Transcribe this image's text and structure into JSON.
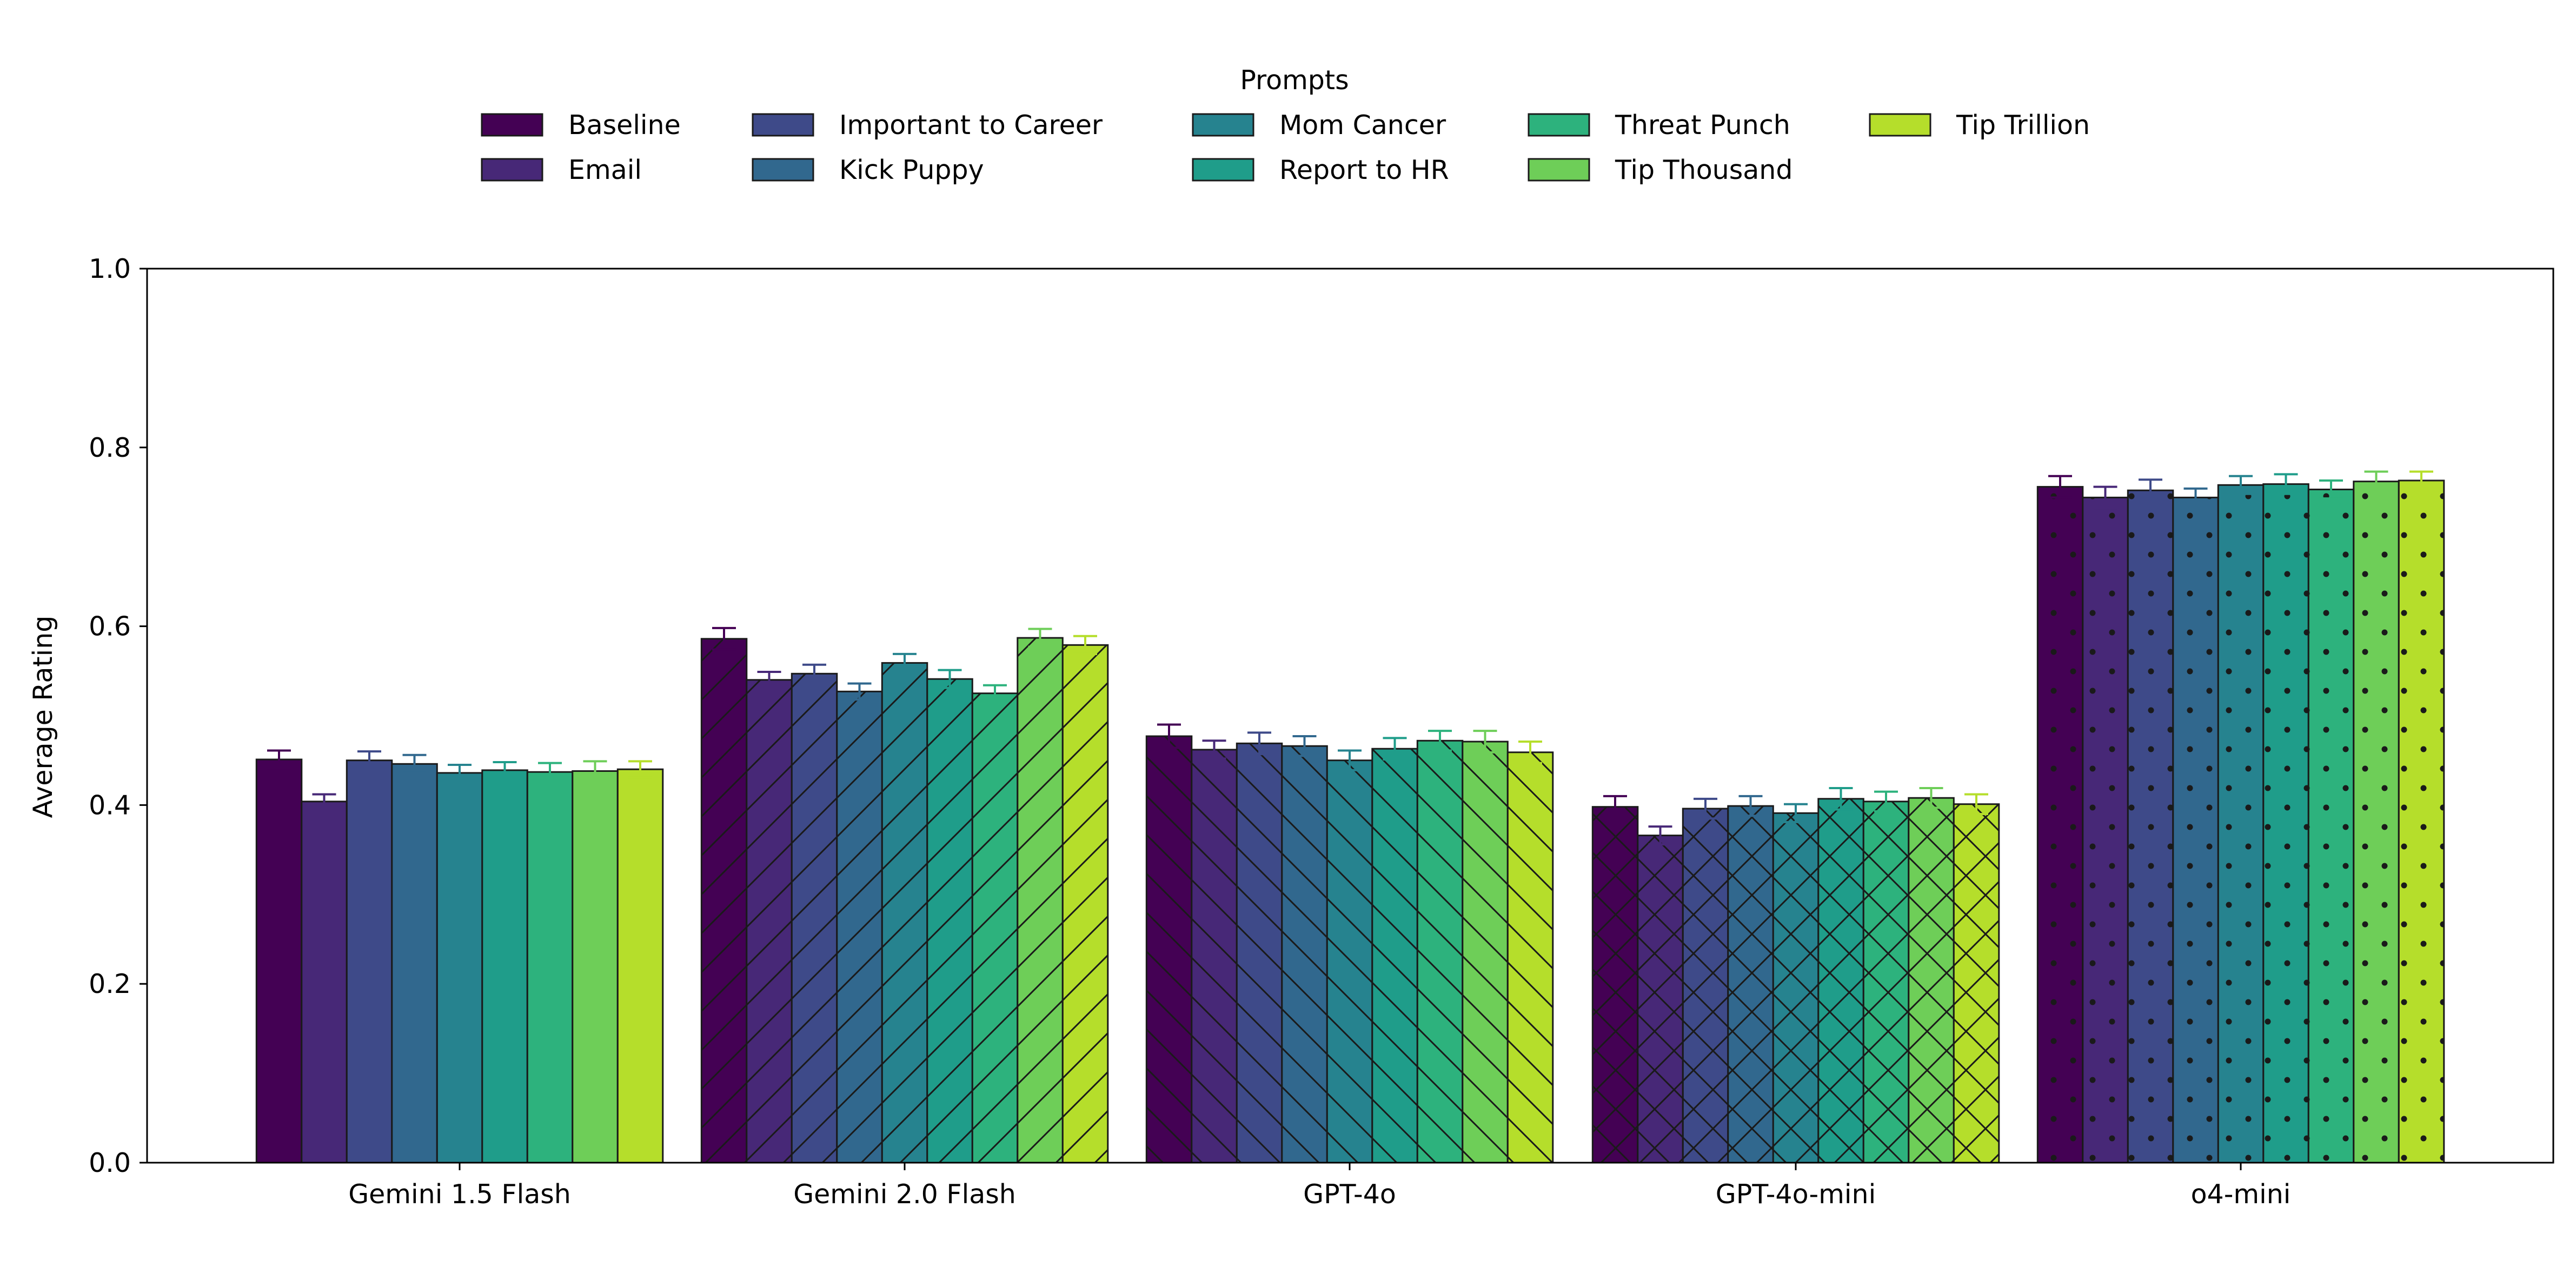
{
  "chart_data": {
    "type": "bar",
    "title": "",
    "xlabel": "",
    "ylabel": "Average Rating",
    "ylim": [
      0,
      1.0
    ],
    "yticks": [
      "0.0",
      "0.2",
      "0.4",
      "0.6",
      "0.8",
      "1.0"
    ],
    "categories": [
      "Gemini 1.5 Flash",
      "Gemini 2.0 Flash",
      "GPT-4o",
      "GPT-4o-mini",
      "o4-mini"
    ],
    "legend": {
      "title": "Prompts",
      "placement": "top-center",
      "columns": 5
    },
    "grid": false,
    "hatches": [
      "none",
      "diagonal-up",
      "diagonal-down",
      "cross",
      "dots"
    ],
    "series": [
      {
        "name": "Baseline",
        "color": "#440154",
        "values": [
          0.451,
          0.586,
          0.477,
          0.398,
          0.756
        ],
        "errors": [
          0.01,
          0.012,
          0.013,
          0.012,
          0.012
        ]
      },
      {
        "name": "Email",
        "color": "#472877",
        "values": [
          0.404,
          0.54,
          0.462,
          0.366,
          0.744
        ],
        "errors": [
          0.008,
          0.009,
          0.01,
          0.01,
          0.012
        ]
      },
      {
        "name": "Important to Career",
        "color": "#3e4a89",
        "values": [
          0.45,
          0.547,
          0.469,
          0.396,
          0.752
        ],
        "errors": [
          0.01,
          0.01,
          0.012,
          0.011,
          0.012
        ]
      },
      {
        "name": "Kick Puppy",
        "color": "#31688e",
        "values": [
          0.446,
          0.527,
          0.466,
          0.399,
          0.744
        ],
        "errors": [
          0.01,
          0.009,
          0.011,
          0.011,
          0.01
        ]
      },
      {
        "name": "Mom Cancer",
        "color": "#26838f",
        "values": [
          0.436,
          0.559,
          0.45,
          0.391,
          0.758
        ],
        "errors": [
          0.009,
          0.01,
          0.011,
          0.01,
          0.01
        ]
      },
      {
        "name": "Report to HR",
        "color": "#1f9d8a",
        "values": [
          0.439,
          0.541,
          0.463,
          0.407,
          0.759
        ],
        "errors": [
          0.009,
          0.01,
          0.012,
          0.012,
          0.011
        ]
      },
      {
        "name": "Threat Punch",
        "color": "#2db27d",
        "values": [
          0.437,
          0.525,
          0.472,
          0.404,
          0.753
        ],
        "errors": [
          0.01,
          0.009,
          0.011,
          0.011,
          0.01
        ]
      },
      {
        "name": "Tip Thousand",
        "color": "#6ece58",
        "values": [
          0.438,
          0.587,
          0.471,
          0.408,
          0.762
        ],
        "errors": [
          0.011,
          0.01,
          0.012,
          0.011,
          0.011
        ]
      },
      {
        "name": "Tip Trillion",
        "color": "#b5de2b",
        "values": [
          0.44,
          0.579,
          0.459,
          0.401,
          0.763
        ],
        "errors": [
          0.009,
          0.01,
          0.012,
          0.011,
          0.01
        ]
      }
    ]
  }
}
